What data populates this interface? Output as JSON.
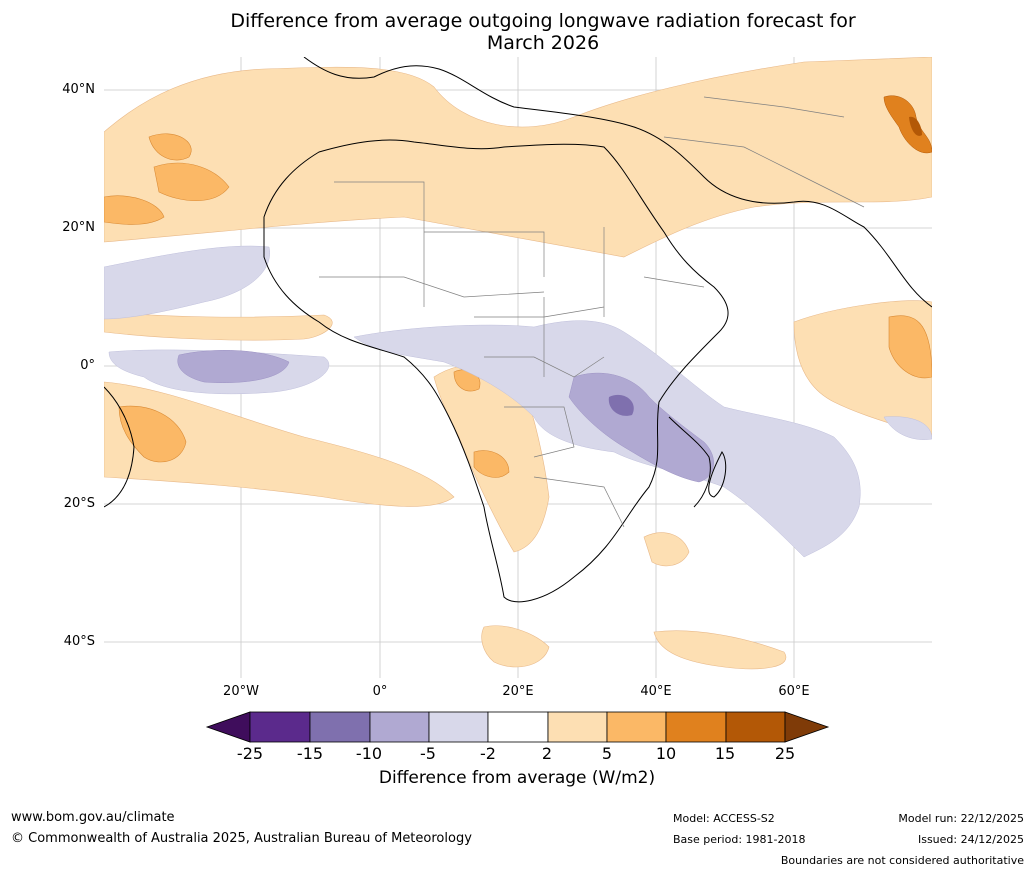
{
  "title": {
    "line1": "Difference from average outgoing longwave radiation forecast for",
    "line2": "March 2026"
  },
  "map": {
    "lat_labels": [
      "40°N",
      "20°N",
      "0°",
      "20°S",
      "40°S"
    ],
    "lon_labels": [
      "20°W",
      "0°",
      "20°E",
      "40°E",
      "60°E"
    ],
    "legend_colors": {
      "n25": "#3f0d5c",
      "n15": "#5b2a8c",
      "n10": "#7f70ae",
      "n5": "#b0a9d2",
      "n2": "#d8d8ea",
      "zero": "#ffffff",
      "p2": "#fddfb3",
      "p5": "#fbb866",
      "p10": "#e0811e",
      "p15": "#b35806",
      "p25": "#7f3b08"
    }
  },
  "colorbar": {
    "ticks": [
      "-25",
      "-15",
      "-10",
      "-5",
      "-2",
      "2",
      "5",
      "10",
      "15",
      "25"
    ],
    "label": "Difference from average (W/m2)"
  },
  "footer": {
    "website": "www.bom.gov.au/climate",
    "copyright": "© Commonwealth of Australia 2025, Australian Bureau of Meteorology",
    "model": "Model: ACCESS-S2",
    "base_period": "Base period: 1981-2018",
    "model_run": "Model run: 22/12/2025",
    "issued": "Issued: 24/12/2025",
    "disclaimer": "Boundaries are not considered authoritative"
  }
}
